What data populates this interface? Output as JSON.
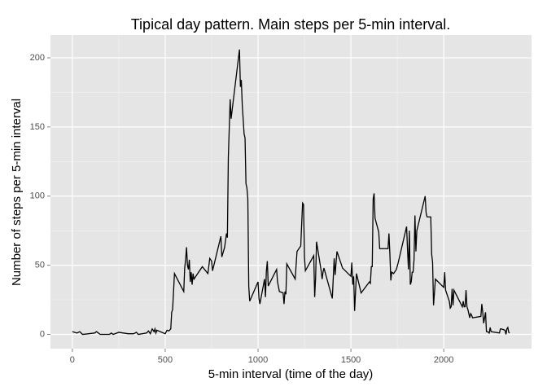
{
  "chart_data": {
    "type": "line",
    "title": "Tipical day pattern. Main steps per 5-min interval.",
    "x_label": "5-min interval (time of the day)",
    "y_label": "Number of steps per 5-min interval",
    "x": [
      0,
      25,
      40,
      55,
      120,
      130,
      150,
      200,
      210,
      220,
      250,
      300,
      330,
      345,
      355,
      400,
      410,
      420,
      430,
      440,
      445,
      450,
      455,
      500,
      510,
      520,
      530,
      535,
      540,
      550,
      600,
      605,
      610,
      615,
      620,
      625,
      630,
      635,
      640,
      645,
      650,
      655,
      700,
      730,
      740,
      750,
      755,
      800,
      805,
      820,
      830,
      835,
      840,
      850,
      855,
      900,
      905,
      910,
      915,
      925,
      930,
      935,
      940,
      945,
      950,
      955,
      1000,
      1005,
      1010,
      1035,
      1040,
      1045,
      1050,
      1055,
      1100,
      1105,
      1115,
      1135,
      1140,
      1145,
      1150,
      1155,
      1200,
      1205,
      1210,
      1230,
      1235,
      1240,
      1245,
      1250,
      1255,
      1300,
      1305,
      1310,
      1315,
      1340,
      1345,
      1350,
      1355,
      1400,
      1410,
      1415,
      1425,
      1455,
      1500,
      1505,
      1510,
      1515,
      1520,
      1530,
      1555,
      1600,
      1605,
      1610,
      1615,
      1620,
      1625,
      1630,
      1650,
      1655,
      1700,
      1705,
      1710,
      1715,
      1720,
      1730,
      1745,
      1755,
      1800,
      1805,
      1810,
      1815,
      1820,
      1825,
      1830,
      1835,
      1840,
      1845,
      1850,
      1855,
      1900,
      1905,
      1910,
      1930,
      1935,
      1940,
      1945,
      1950,
      1955,
      2000,
      2005,
      2010,
      2030,
      2035,
      2040,
      2045,
      2050,
      2055,
      2100,
      2105,
      2110,
      2115,
      2120,
      2125,
      2130,
      2140,
      2145,
      2150,
      2155,
      2200,
      2205,
      2210,
      2215,
      2220,
      2225,
      2230,
      2235,
      2245,
      2250,
      2255,
      2300,
      2305,
      2310,
      2330,
      2335,
      2340,
      2345,
      2350,
      2355
    ],
    "series": [
      {
        "name": "steps",
        "color": "#000000",
        "values": [
          2,
          1,
          2,
          0,
          1,
          2,
          0,
          0,
          1,
          0,
          1.5,
          0.5,
          0.5,
          1.5,
          0,
          1,
          2.5,
          0.5,
          4,
          2,
          4,
          1,
          3,
          0.5,
          3,
          2.5,
          4,
          16,
          18,
          44,
          31,
          48,
          54,
          63,
          50,
          47,
          54,
          38,
          45,
          36,
          44,
          40,
          49,
          44,
          55,
          53,
          46,
          71,
          56,
          63,
          73,
          70,
          128,
          170,
          156,
          206,
          179,
          184,
          166,
          145,
          142,
          109,
          106,
          98,
          35,
          24,
          38,
          26,
          22,
          40,
          27,
          46,
          53,
          35,
          47,
          38,
          31,
          30,
          22,
          31,
          29,
          51,
          40,
          50,
          60,
          64,
          80,
          95,
          94,
          56,
          46,
          57,
          27,
          41,
          67,
          46,
          40,
          45,
          48,
          26,
          55,
          43,
          60,
          48,
          42,
          52,
          36,
          42,
          17,
          44,
          30,
          38,
          37,
          49,
          49,
          98,
          102,
          84,
          74,
          62,
          62,
          73,
          58,
          39,
          45,
          44,
          47,
          52,
          78,
          61,
          47,
          75,
          36,
          38,
          45,
          45,
          54,
          86,
          60,
          75,
          100,
          88,
          85,
          85,
          58,
          52,
          21,
          30,
          40,
          34,
          45,
          32,
          24,
          19,
          20,
          33,
          21,
          32,
          20,
          24,
          20,
          20,
          32,
          20,
          18,
          12,
          15,
          14,
          12,
          13,
          22,
          16,
          8,
          12,
          16,
          2,
          2,
          1,
          5,
          2,
          1,
          4,
          4,
          3,
          0,
          4,
          5,
          1.5,
          1
        ]
      }
    ],
    "xlim": [
      -117.75,
      2472.75
    ],
    "xticks": [
      0,
      500,
      1000,
      1500,
      2000
    ],
    "ylim": [
      -10.3,
      216.5
    ],
    "yticks": [
      0,
      50,
      100,
      150,
      200
    ],
    "grid": true
  }
}
